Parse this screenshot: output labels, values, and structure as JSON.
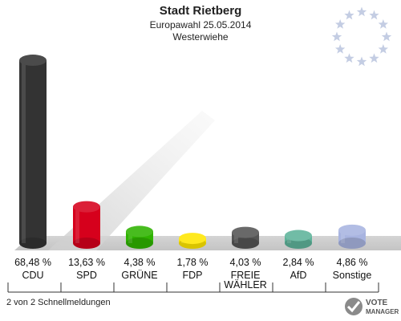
{
  "chart_data": {
    "type": "bar",
    "title": "Stadt Rietberg",
    "subtitle": "Europawahl 25.05.2014",
    "subtitle2": "Westerwiehe",
    "categories": [
      "CDU",
      "SPD",
      "GRÜNE",
      "FDP",
      "FREIE WÄHLER",
      "AfD",
      "Sonstige"
    ],
    "category_lines": [
      [
        "CDU"
      ],
      [
        "SPD"
      ],
      [
        "GRÜNE"
      ],
      [
        "FDP"
      ],
      [
        "FREIE",
        "WÄHLER"
      ],
      [
        "AfD"
      ],
      [
        "Sonstige"
      ]
    ],
    "values": [
      68.48,
      13.63,
      4.38,
      1.78,
      4.03,
      2.84,
      4.86
    ],
    "value_labels": [
      "68,48 %",
      "13,63 %",
      "4,38 %",
      "1,78 %",
      "4,03 %",
      "2,84 %",
      "4,86 %"
    ],
    "colors": [
      "#333333",
      "#d6001c",
      "#2fb300",
      "#ffe600",
      "#555555",
      "#5eb39a",
      "#a8b4e0"
    ],
    "ylim": [
      0,
      70
    ],
    "grid": false
  },
  "footer": {
    "left_text": "2 von 2 Schnellmeldungen",
    "logo_line1": "VOTE",
    "logo_line2": "MANAGER"
  }
}
